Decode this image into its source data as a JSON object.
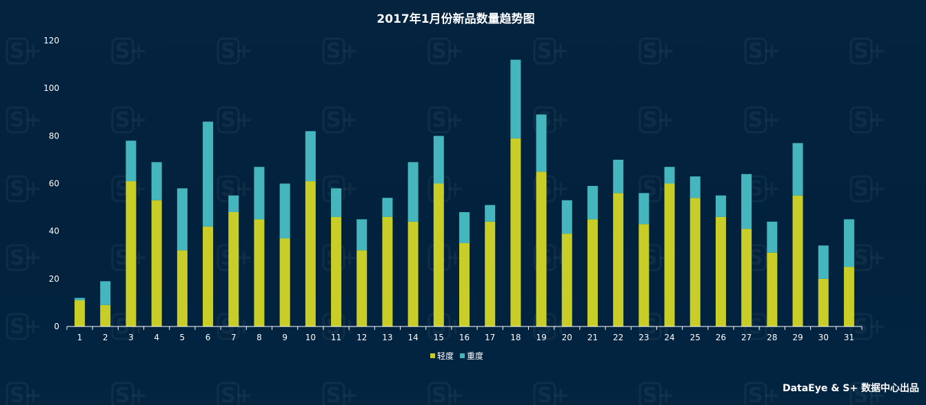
{
  "colors": {
    "background": "#03223f",
    "light_series": "#c8cd28",
    "heavy_series": "#45b6bd",
    "text": "#ffffff"
  },
  "watermark": {
    "text": "S+"
  },
  "footer": {
    "credit": "DataEye & S+ 数据中心出品"
  },
  "chart_data": {
    "type": "bar",
    "stacked": true,
    "title": "2017年1月份新品数量趋势图",
    "xlabel": "",
    "ylabel": "",
    "ylim": [
      0,
      120
    ],
    "yticks": [
      0,
      20,
      40,
      60,
      80,
      100,
      120
    ],
    "grid": false,
    "legend_position": "bottom-center",
    "categories": [
      "1",
      "2",
      "3",
      "4",
      "5",
      "6",
      "7",
      "8",
      "9",
      "10",
      "11",
      "12",
      "13",
      "14",
      "15",
      "16",
      "17",
      "18",
      "19",
      "20",
      "21",
      "22",
      "23",
      "24",
      "25",
      "26",
      "27",
      "28",
      "29",
      "30",
      "31"
    ],
    "series": [
      {
        "name": "轻度",
        "color": "#c8cd28",
        "values": [
          11,
          9,
          61,
          53,
          32,
          42,
          48,
          45,
          37,
          61,
          46,
          32,
          46,
          44,
          60,
          35,
          44,
          79,
          65,
          39,
          45,
          56,
          43,
          60,
          54,
          46,
          41,
          31,
          55,
          20,
          25
        ]
      },
      {
        "name": "重度",
        "color": "#45b6bd",
        "values": [
          1,
          10,
          17,
          16,
          26,
          44,
          7,
          22,
          23,
          21,
          12,
          13,
          8,
          25,
          20,
          13,
          7,
          33,
          24,
          14,
          14,
          14,
          13,
          7,
          9,
          9,
          23,
          13,
          22,
          14,
          20
        ]
      }
    ]
  }
}
